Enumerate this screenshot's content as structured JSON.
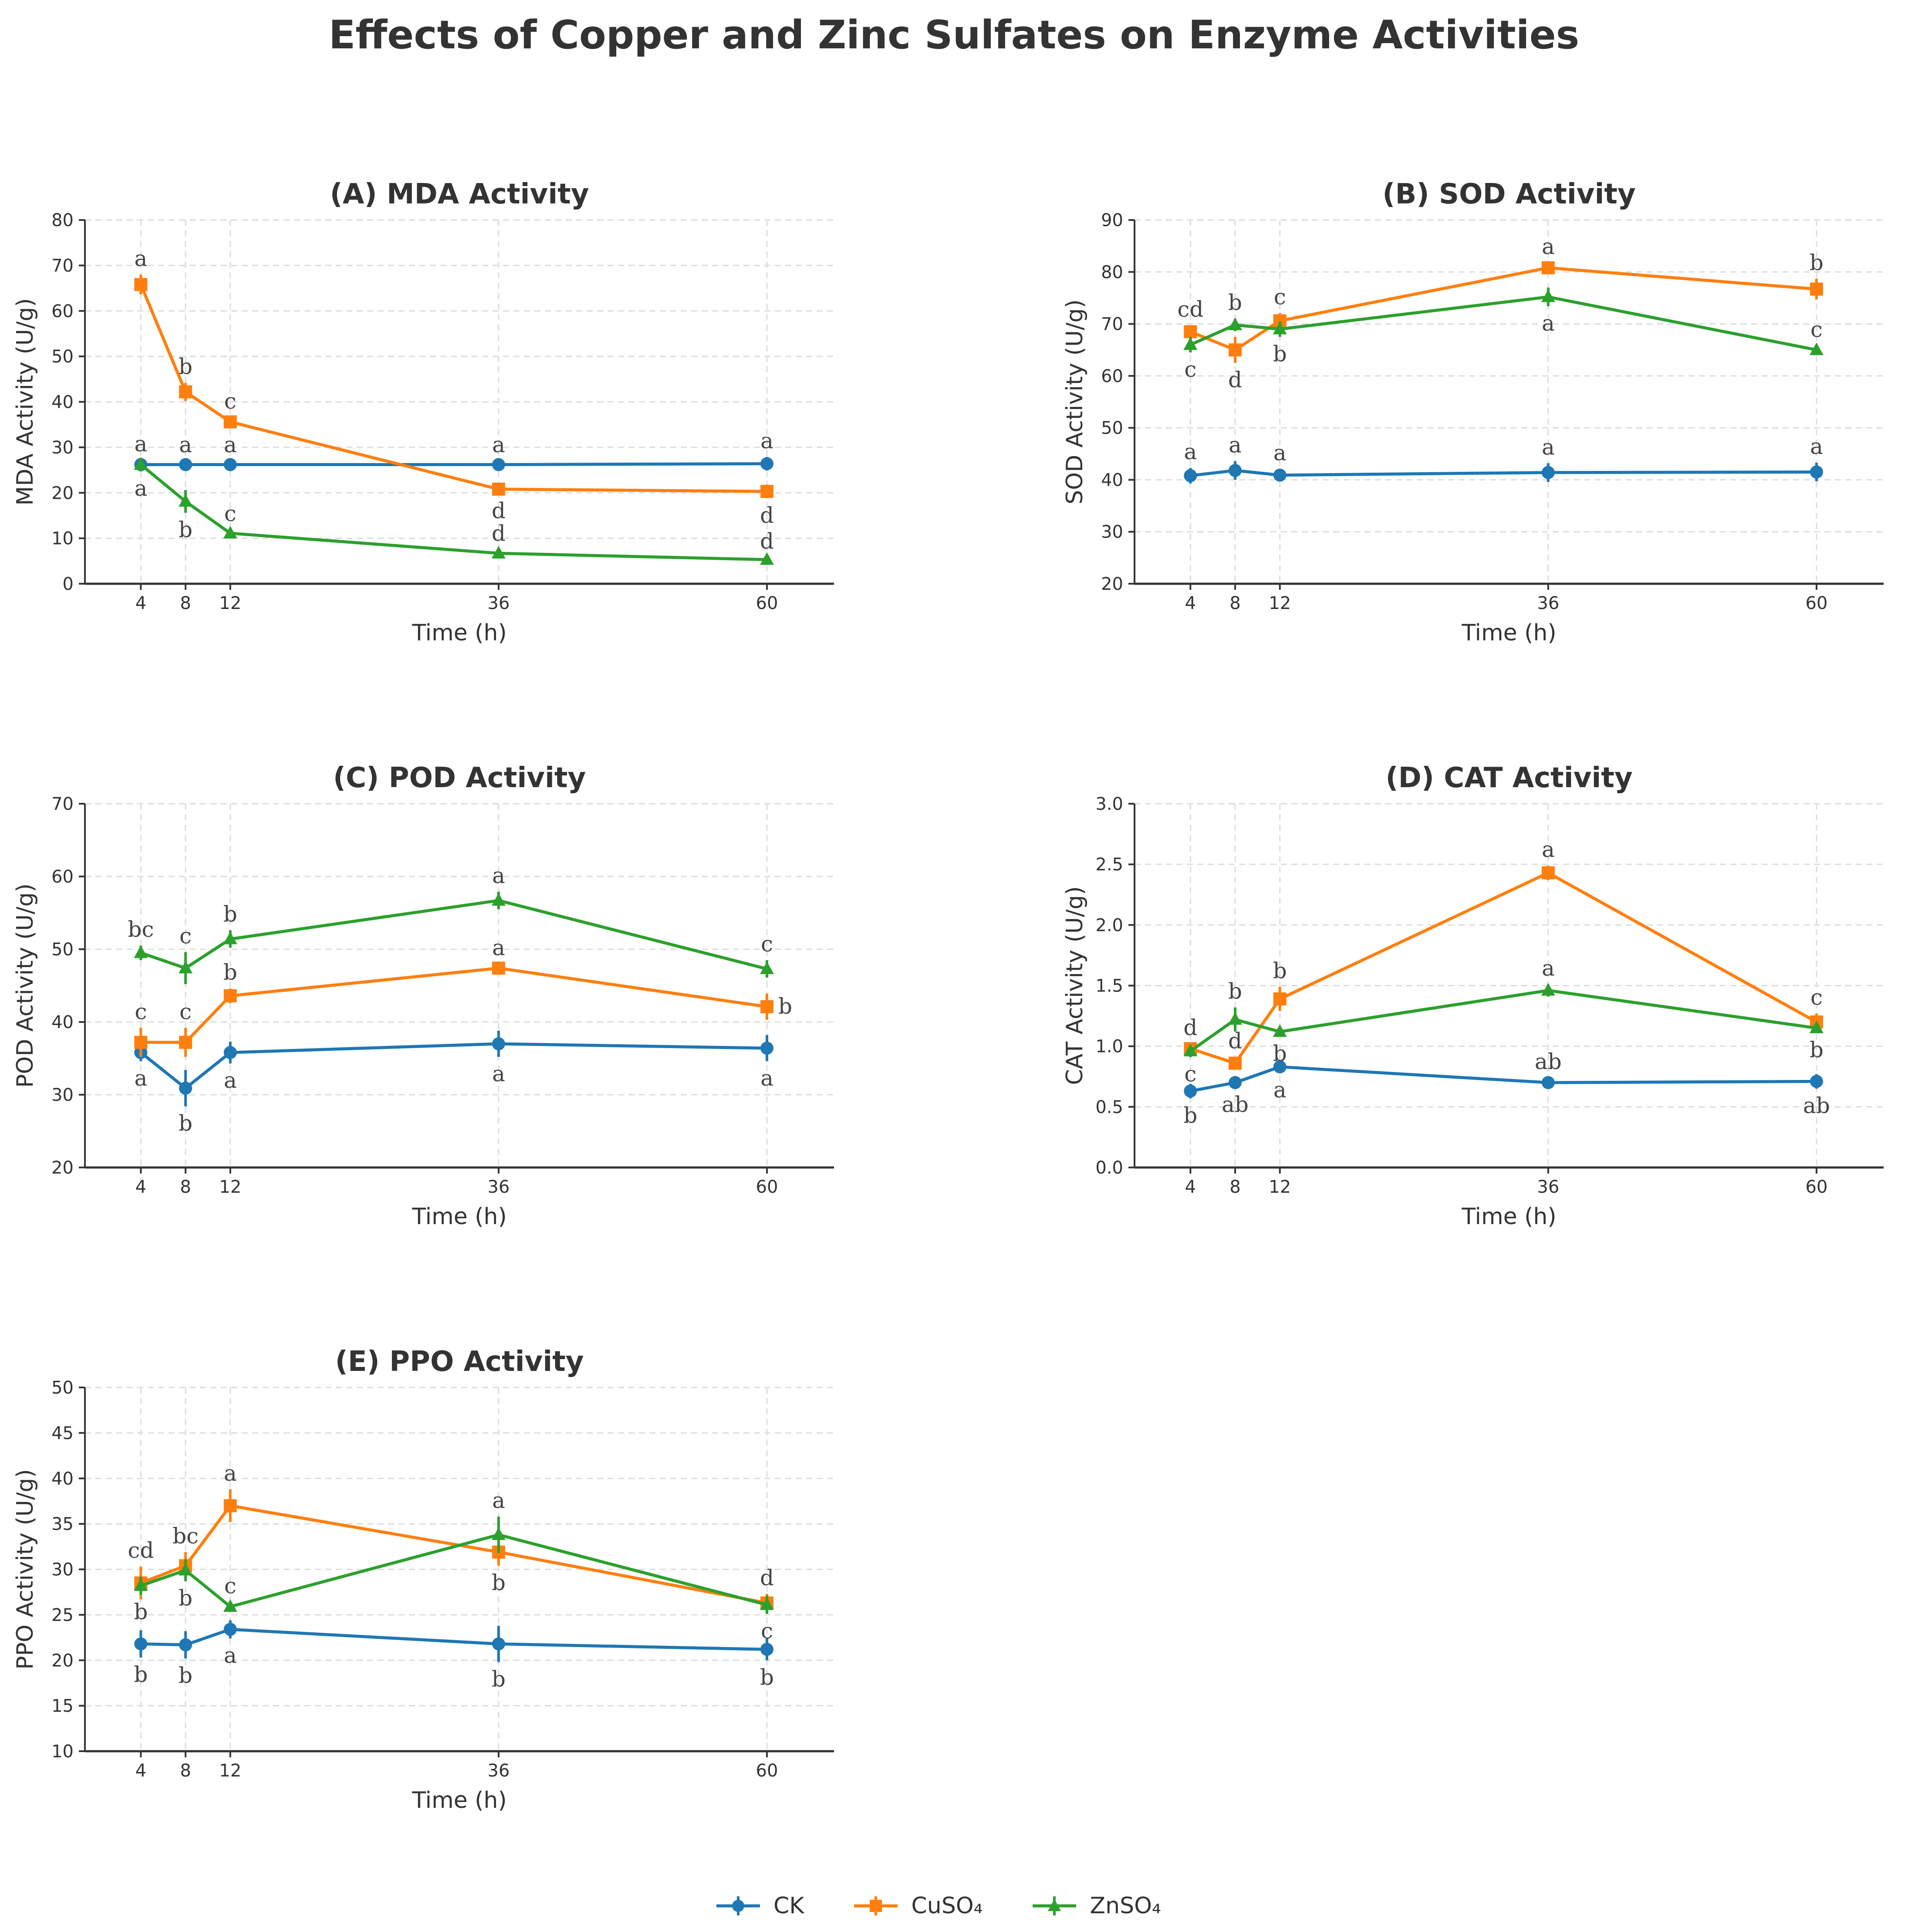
{
  "figure_title": "Effects of Copper and Zinc Sulfates on Enzyme Activities",
  "colors": {
    "CK": "#1f77b4",
    "CuSO4": "#ff7f0e",
    "ZnSO4": "#2ca02c",
    "axis": "#333333",
    "grid": "#dddddd"
  },
  "legend": [
    {
      "key": "CK",
      "label": "CK",
      "marker": "circle"
    },
    {
      "key": "CuSO4",
      "label": "CuSO₄",
      "marker": "square"
    },
    {
      "key": "ZnSO4",
      "label": "ZnSO₄",
      "marker": "triangle"
    }
  ],
  "chart_data": [
    {
      "id": "mda",
      "type": "line",
      "title": "(A) MDA Activity",
      "xlabel": "Time (h)",
      "ylabel": "MDA Activity (U/g)",
      "x": [
        4,
        8,
        12,
        36,
        60
      ],
      "xlim": [
        -1,
        66
      ],
      "ylim": [
        0,
        80
      ],
      "yticks": [
        0,
        10,
        20,
        30,
        40,
        50,
        60,
        70,
        80
      ],
      "yfmt": 0,
      "grid": true,
      "series": [
        {
          "name": "CK",
          "values": [
            26.2,
            26.2,
            26.2,
            26.2,
            26.4
          ],
          "err": [
            1.0,
            0.8,
            0.8,
            0.8,
            1.5
          ],
          "letters": [
            "a",
            "a",
            "a",
            "a",
            "a"
          ],
          "pos": [
            "above",
            "above",
            "above",
            "above",
            "above"
          ]
        },
        {
          "name": "CuSO4",
          "values": [
            65.8,
            42.2,
            35.6,
            20.8,
            20.3
          ],
          "err": [
            2.2,
            2.0,
            1.0,
            1.0,
            1.5
          ],
          "letters": [
            "a",
            "b",
            "c",
            "d",
            "d"
          ],
          "pos": [
            "above",
            "above",
            "above",
            "below",
            "below"
          ]
        },
        {
          "name": "ZnSO4",
          "values": [
            26.2,
            18.1,
            11.1,
            6.7,
            5.3
          ],
          "err": [
            1.5,
            2.5,
            0.8,
            0.8,
            0.5
          ],
          "letters": [
            "a",
            "b",
            "c",
            "d",
            "d"
          ],
          "pos": [
            "below",
            "below",
            "above",
            "above",
            "above"
          ]
        }
      ]
    },
    {
      "id": "sod",
      "type": "line",
      "title": "(B) SOD Activity",
      "xlabel": "Time (h)",
      "ylabel": "SOD Activity (U/g)",
      "x": [
        4,
        8,
        12,
        36,
        60
      ],
      "xlim": [
        -1,
        66
      ],
      "ylim": [
        20,
        90
      ],
      "yticks": [
        20,
        30,
        40,
        50,
        60,
        70,
        80,
        90
      ],
      "yfmt": 0,
      "grid": true,
      "series": [
        {
          "name": "CK",
          "values": [
            40.8,
            41.8,
            40.9,
            41.4,
            41.5
          ],
          "err": [
            1.5,
            1.8,
            1.2,
            1.8,
            1.8
          ],
          "letters": [
            "a",
            "a",
            "a",
            "a",
            "a"
          ],
          "pos": [
            "above",
            "above",
            "above",
            "above",
            "above"
          ]
        },
        {
          "name": "CuSO4",
          "values": [
            68.5,
            65.0,
            70.6,
            80.8,
            76.7
          ],
          "err": [
            1.2,
            2.5,
            1.5,
            1.0,
            2.0
          ],
          "letters": [
            "cd",
            "d",
            "c",
            "a",
            "b"
          ],
          "pos": [
            "above",
            "below",
            "above",
            "above",
            "above"
          ]
        },
        {
          "name": "ZnSO4",
          "values": [
            66.0,
            69.8,
            69.0,
            75.2,
            65.0
          ],
          "err": [
            1.5,
            1.2,
            1.5,
            1.8,
            0.8
          ],
          "letters": [
            "c",
            "b",
            "b",
            "a",
            "c"
          ],
          "pos": [
            "below",
            "above",
            "below",
            "below",
            "above"
          ]
        }
      ]
    },
    {
      "id": "pod",
      "type": "line",
      "title": "(C) POD Activity",
      "xlabel": "Time (h)",
      "ylabel": "POD Activity (U/g)",
      "x": [
        4,
        8,
        12,
        36,
        60
      ],
      "xlim": [
        -1,
        66
      ],
      "ylim": [
        20,
        70
      ],
      "yticks": [
        20,
        30,
        40,
        50,
        60,
        70
      ],
      "yfmt": 0,
      "grid": true,
      "series": [
        {
          "name": "CK",
          "values": [
            35.8,
            30.9,
            35.8,
            37.0,
            36.4
          ],
          "err": [
            1.2,
            2.5,
            1.5,
            1.8,
            1.8
          ],
          "letters": [
            "a",
            "b",
            "a",
            "a",
            "a"
          ],
          "pos": [
            "below",
            "below",
            "below",
            "below",
            "below"
          ]
        },
        {
          "name": "CuSO4",
          "values": [
            37.2,
            37.2,
            43.6,
            47.4,
            42.1
          ],
          "err": [
            2.0,
            2.0,
            1.0,
            0.6,
            1.8
          ],
          "letters": [
            "c",
            "c",
            "b",
            "a",
            "b"
          ],
          "pos": [
            "above",
            "above",
            "above",
            "above",
            "right"
          ]
        },
        {
          "name": "ZnSO4",
          "values": [
            49.5,
            47.4,
            51.4,
            56.7,
            47.3
          ],
          "err": [
            1.0,
            2.2,
            1.2,
            1.2,
            1.2
          ],
          "letters": [
            "bc",
            "c",
            "b",
            "a",
            "c"
          ],
          "pos": [
            "above",
            "above",
            "above",
            "above",
            "above"
          ]
        }
      ]
    },
    {
      "id": "cat",
      "type": "line",
      "title": "(D) CAT Activity",
      "xlabel": "Time (h)",
      "ylabel": "CAT Activity (U/g)",
      "x": [
        4,
        8,
        12,
        36,
        60
      ],
      "xlim": [
        -1,
        66
      ],
      "ylim": [
        0.0,
        3.0
      ],
      "yticks": [
        0.0,
        0.5,
        1.0,
        1.5,
        2.0,
        2.5,
        3.0
      ],
      "yfmt": 1,
      "grid": true,
      "series": [
        {
          "name": "CK",
          "values": [
            0.63,
            0.7,
            0.83,
            0.7,
            0.71
          ],
          "err": [
            0.06,
            0.04,
            0.05,
            0.04,
            0.06
          ],
          "letters": [
            "b",
            "ab",
            "a",
            "ab",
            "ab"
          ],
          "pos": [
            "below",
            "below",
            "below",
            "above",
            "below"
          ]
        },
        {
          "name": "CuSO4",
          "values": [
            0.98,
            0.86,
            1.39,
            2.43,
            1.2
          ],
          "err": [
            0.04,
            0.05,
            0.1,
            0.06,
            0.07
          ],
          "letters": [
            "d",
            "d",
            "b",
            "a",
            "c"
          ],
          "pos": [
            "above",
            "above",
            "above",
            "above",
            "above"
          ]
        },
        {
          "name": "ZnSO4",
          "values": [
            0.96,
            1.22,
            1.12,
            1.46,
            1.15
          ],
          "err": [
            0.05,
            0.1,
            0.04,
            0.05,
            0.04
          ],
          "letters": [
            "c",
            "b",
            "b",
            "a",
            "b"
          ],
          "pos": [
            "below",
            "above",
            "below",
            "above",
            "below"
          ]
        }
      ]
    },
    {
      "id": "ppo",
      "type": "line",
      "title": "(E) PPO Activity",
      "xlabel": "Time (h)",
      "ylabel": "PPO Activity (U/g)",
      "x": [
        4,
        8,
        12,
        36,
        60
      ],
      "xlim": [
        -1,
        66
      ],
      "ylim": [
        10,
        50
      ],
      "yticks": [
        10,
        15,
        20,
        25,
        30,
        35,
        40,
        45,
        50
      ],
      "yfmt": 0,
      "grid": true,
      "series": [
        {
          "name": "CK",
          "values": [
            21.8,
            21.7,
            23.4,
            21.8,
            21.2
          ],
          "err": [
            1.5,
            1.5,
            1.0,
            2.0,
            1.2
          ],
          "letters": [
            "b",
            "b",
            "a",
            "b",
            "b"
          ],
          "pos": [
            "below",
            "below",
            "below",
            "below",
            "below"
          ]
        },
        {
          "name": "CuSO4",
          "values": [
            28.5,
            30.4,
            37.0,
            31.9,
            26.3
          ],
          "err": [
            1.8,
            1.5,
            1.8,
            1.5,
            1.0
          ],
          "letters": [
            "cd",
            "bc",
            "a",
            "b",
            "d"
          ],
          "pos": [
            "above",
            "above",
            "above",
            "below",
            "above"
          ]
        },
        {
          "name": "ZnSO4",
          "values": [
            28.2,
            29.9,
            25.9,
            33.8,
            26.1
          ],
          "err": [
            1.0,
            1.2,
            0.5,
            2.0,
            1.0
          ],
          "letters": [
            "b",
            "b",
            "c",
            "a",
            "c"
          ],
          "pos": [
            "below",
            "below",
            "above",
            "above",
            "below"
          ]
        }
      ]
    }
  ]
}
